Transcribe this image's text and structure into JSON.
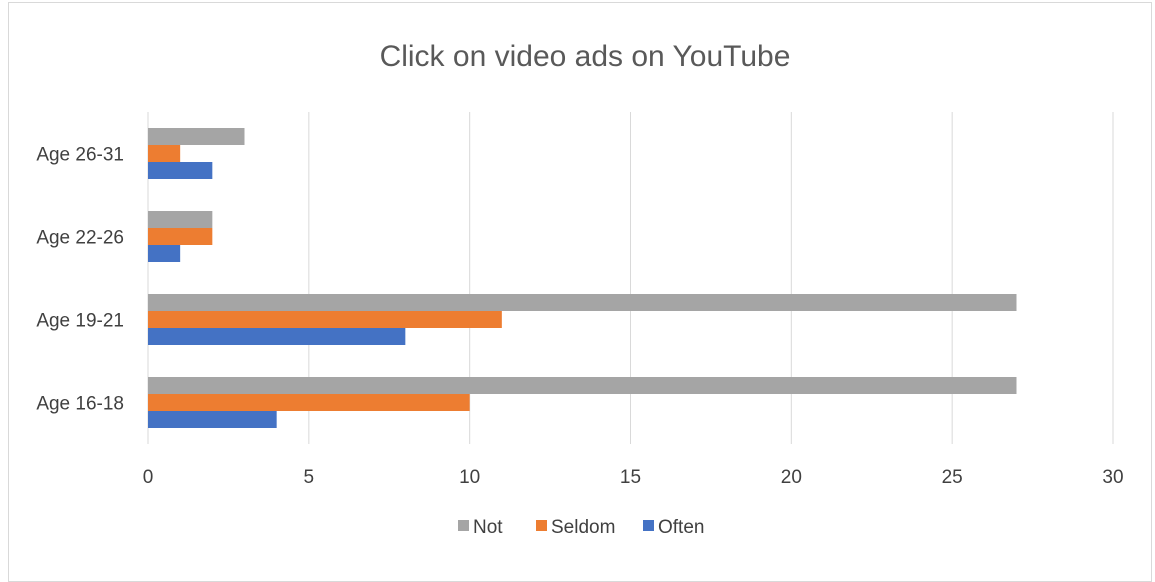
{
  "chart_data": {
    "type": "bar",
    "orientation": "horizontal",
    "title": "Click on video ads on YouTube",
    "xlabel": "",
    "ylabel": "",
    "categories": [
      "Age 16-18",
      "Age 19-21",
      "Age 22-26",
      "Age 26-31"
    ],
    "series": [
      {
        "name": "Often",
        "values": [
          4,
          8,
          1,
          2
        ],
        "color": "#4472c4"
      },
      {
        "name": "Seldom",
        "values": [
          10,
          11,
          2,
          1
        ],
        "color": "#ed7d31"
      },
      {
        "name": "Not",
        "values": [
          27,
          27,
          2,
          3
        ],
        "color": "#a5a5a5"
      }
    ],
    "xlim": [
      0,
      30
    ],
    "xticks": [
      0,
      5,
      10,
      15,
      20,
      25,
      30
    ],
    "grid": true,
    "legend": {
      "position": "bottom",
      "order": [
        "Not",
        "Seldom",
        "Often"
      ]
    }
  }
}
